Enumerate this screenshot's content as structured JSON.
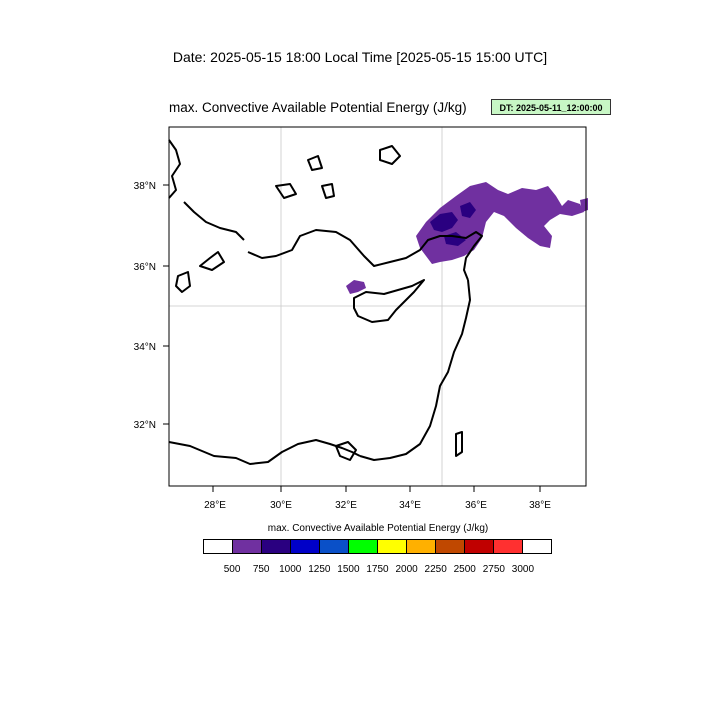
{
  "header": {
    "date_line": "Date: 2025-05-15  18:00 Local Time [2025-05-15  15:00 UTC]"
  },
  "map": {
    "title": "max. Convective Available Potential Energy   (J/kg)",
    "dt_badge": "DT: 2025-05-11_12:00:00",
    "lat_labels": [
      "38°N",
      "36°N",
      "34°N",
      "32°N"
    ],
    "lon_labels": [
      "28°E",
      "30°E",
      "32°E",
      "34°E",
      "36°E",
      "38°E"
    ],
    "shade_color": "#7030a0",
    "core_color": "#2a0080"
  },
  "colorbar": {
    "title": "max. Convective Available Potential Energy  (J/kg)",
    "colors": [
      "#ffffff",
      "#7030a0",
      "#2a0080",
      "#0000c8",
      "#0a50c8",
      "#00ff00",
      "#ffff00",
      "#ffb000",
      "#c04800",
      "#c00000",
      "#ff3030",
      "#ffffff"
    ],
    "labels": [
      "500",
      "750",
      "1000",
      "1250",
      "1500",
      "1750",
      "2000",
      "2250",
      "2500",
      "2750",
      "3000"
    ]
  }
}
